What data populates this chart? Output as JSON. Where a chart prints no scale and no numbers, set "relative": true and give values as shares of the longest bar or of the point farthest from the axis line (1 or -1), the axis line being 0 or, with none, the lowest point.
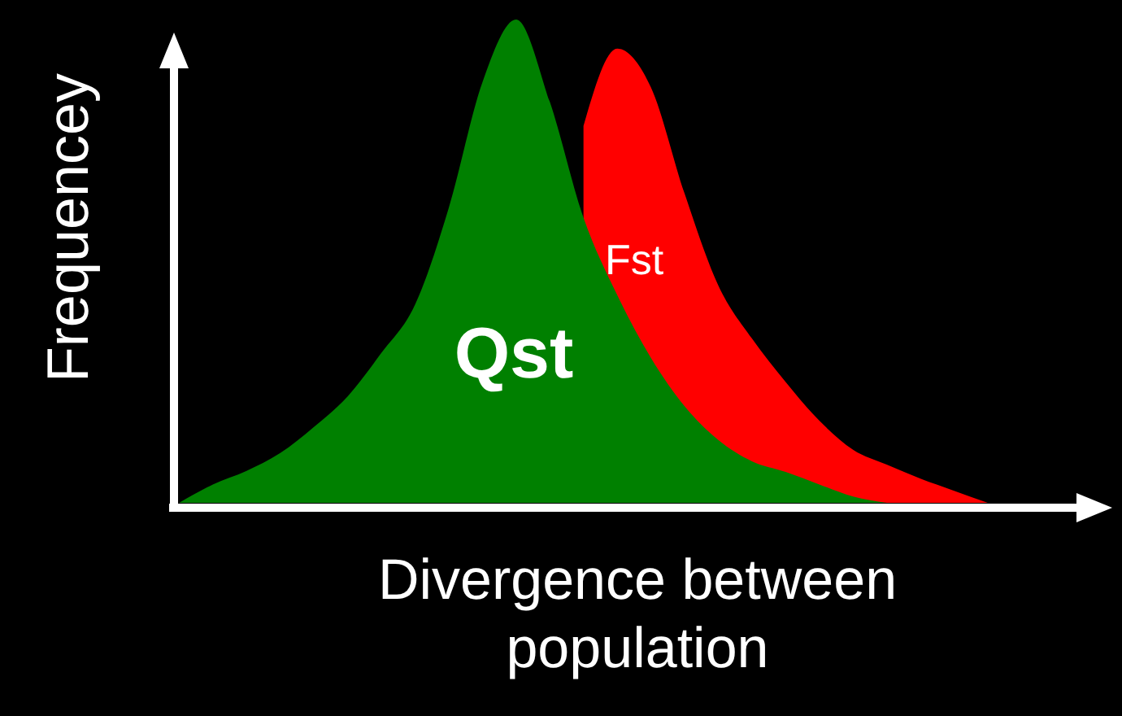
{
  "chart_data": {
    "type": "area",
    "xlabel": "Divergence between population",
    "ylabel": "Frequencey",
    "relative": true,
    "categories": [
      null,
      null,
      null,
      null,
      null,
      null,
      null,
      null,
      null,
      null,
      null,
      null,
      null,
      null,
      null,
      null,
      null,
      null,
      null,
      null,
      null,
      null,
      null,
      null,
      null
    ],
    "series": [
      {
        "name": "Qst",
        "color": "#008000",
        "values": [
          0,
          0.038,
          0.066,
          0.103,
          0.157,
          0.22,
          0.31,
          0.41,
          0.61,
          0.87,
          1,
          0.83,
          0.59,
          0.43,
          0.3,
          0.2,
          0.13,
          0.086,
          0.064,
          0.038,
          0.013,
          0,
          null,
          null,
          null
        ]
      },
      {
        "name": "Fst",
        "color": "#ff0000",
        "values": [
          null,
          null,
          null,
          null,
          null,
          null,
          null,
          null,
          null,
          null,
          null,
          null,
          0.78,
          0.94,
          0.86,
          0.64,
          0.45,
          0.34,
          0.25,
          0.17,
          0.11,
          0.079,
          0.05,
          0.025,
          0
        ]
      }
    ]
  }
}
